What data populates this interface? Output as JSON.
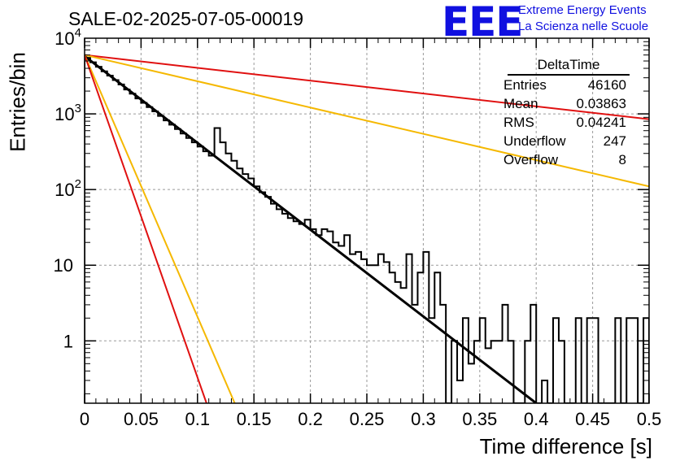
{
  "header": {
    "title": "SALE-02-2025-07-05-00019",
    "logo_text": "EEE",
    "logo_line1": "Extreme Energy Events",
    "logo_line2": "La Scienza nelle Scuole"
  },
  "stats": {
    "title": "DeltaTime",
    "rows": [
      {
        "label": "Entries",
        "value": "46160"
      },
      {
        "label": "Mean",
        "value": "0.03863"
      },
      {
        "label": "RMS",
        "value": "0.04241"
      },
      {
        "label": "Underflow",
        "value": "247"
      },
      {
        "label": "Overflow",
        "value": "8"
      }
    ]
  },
  "chart_data": {
    "type": "histogram",
    "xlabel": "Time difference [s]",
    "ylabel": "Entries/bin",
    "xlim": [
      0,
      0.5
    ],
    "ylim": [
      0.15,
      10000
    ],
    "log_y": true,
    "grid": true,
    "x_ticks": [
      "0",
      "0.05",
      "0.1",
      "0.15",
      "0.2",
      "0.25",
      "0.3",
      "0.35",
      "0.4",
      "0.45",
      "0.5"
    ],
    "y_ticks": [
      {
        "value": 1,
        "label": "1"
      },
      {
        "value": 10,
        "label": "10"
      },
      {
        "value": 100,
        "label": "10^2"
      },
      {
        "value": 1000,
        "label": "10^3"
      },
      {
        "value": 10000,
        "label": "10^4"
      }
    ],
    "bin_width": 0.005,
    "histogram": [
      5500,
      4800,
      4200,
      3650,
      3200,
      2800,
      2450,
      2100,
      1850,
      1600,
      1400,
      1230,
      1080,
      940,
      820,
      720,
      630,
      550,
      480,
      420,
      370,
      320,
      280,
      650,
      420,
      300,
      240,
      190,
      160,
      140,
      110,
      92,
      80,
      65,
      55,
      48,
      42,
      38,
      35,
      40,
      30,
      25,
      30,
      28,
      20,
      18,
      25,
      14,
      15,
      12,
      10,
      10,
      14,
      11,
      8,
      6,
      5,
      14,
      3,
      8,
      15,
      2,
      8,
      3,
      0.1,
      1,
      0.3,
      2,
      0.5,
      1,
      2,
      0.8,
      1,
      1,
      3,
      1,
      0.1,
      0.1,
      1,
      3,
      0.1,
      0.3,
      0.1,
      2,
      1,
      0.1,
      0.1,
      2,
      0.1,
      2,
      2,
      0.1,
      0.1,
      0.1,
      2,
      0.1,
      2,
      2,
      0.1,
      2
    ],
    "series": [
      {
        "type": "fit",
        "color": "#000000",
        "x": [
          0,
          0.4
        ],
        "y": [
          5800,
          0.15
        ]
      },
      {
        "type": "line",
        "color": "#e01010",
        "x": [
          0,
          0.5
        ],
        "y": [
          6000,
          850
        ]
      },
      {
        "type": "line",
        "color": "#f5b800",
        "x": [
          0,
          0.5
        ],
        "y": [
          6000,
          110
        ]
      },
      {
        "type": "line",
        "color": "#f5b800",
        "x": [
          0,
          0.133
        ],
        "y": [
          6000,
          0.15
        ]
      },
      {
        "type": "line",
        "color": "#e01010",
        "x": [
          0,
          0.108
        ],
        "y": [
          6000,
          0.15
        ]
      }
    ]
  }
}
